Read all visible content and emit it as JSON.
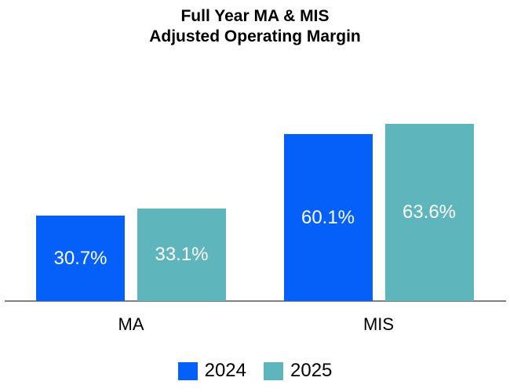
{
  "chart_data": {
    "type": "bar",
    "title": "Full Year MA & MIS Adjusted Operating Margin",
    "title_line1": "Full Year MA & MIS",
    "title_line2": "Adjusted Operating Margin",
    "categories": [
      "MA",
      "MIS"
    ],
    "series": [
      {
        "name": "2024",
        "color": "#0560FA",
        "values": [
          30.7,
          60.1
        ],
        "labels": [
          "30.7%",
          "60.1%"
        ]
      },
      {
        "name": "2025",
        "color": "#5EB5BC",
        "values": [
          33.1,
          63.6
        ],
        "labels": [
          "33.1%",
          "63.6%"
        ]
      }
    ],
    "value_suffix": "%",
    "value_label_position": "inside-center",
    "value_label_color": "#FFFFFF",
    "xlabel": "",
    "ylabel": "",
    "ylim": [
      0,
      68
    ],
    "y_axis_visible": false,
    "grid": false,
    "axis_line_color": "#808080",
    "text_color": "#000000",
    "background_color": "#FFFFFF",
    "legend_position": "bottom"
  }
}
